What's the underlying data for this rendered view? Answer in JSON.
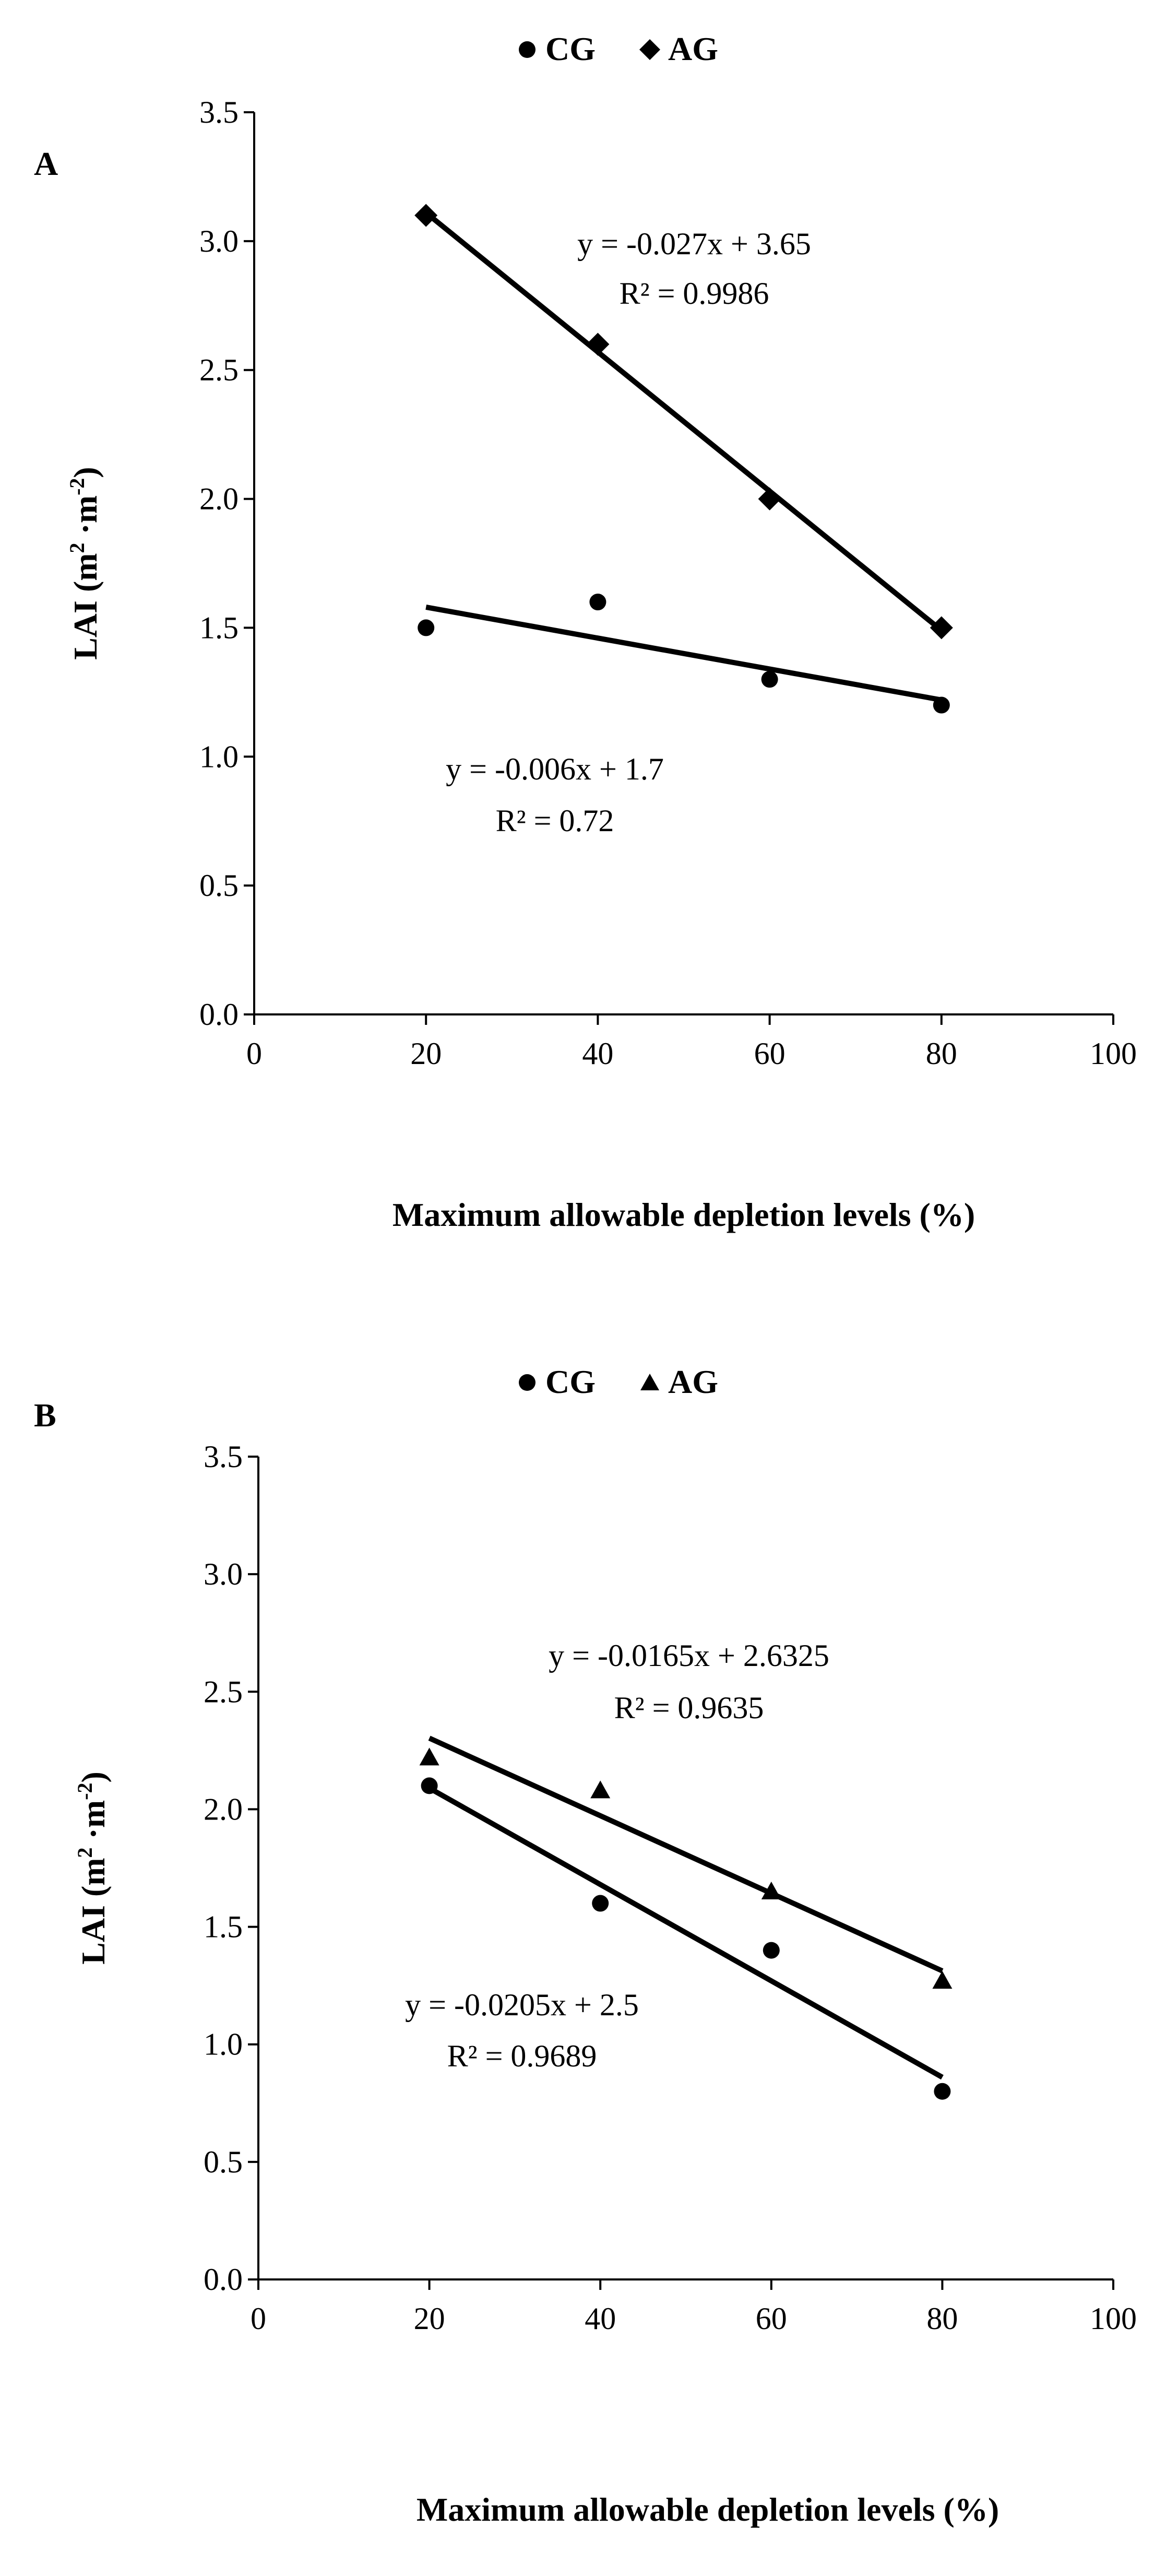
{
  "chart_data": [
    {
      "panel_label": "A",
      "type": "scatter",
      "title": "",
      "xlabel": "Maximum allowable depletion levels (%)",
      "ylabel_main": "LAI (m",
      "ylabel_sup1": "2",
      "ylabel_mid": " ·m",
      "ylabel_sup2": "-2",
      "ylabel_end": ")",
      "xlim": [
        0,
        100
      ],
      "ylim": [
        0,
        3.5
      ],
      "xticks": [
        0,
        20,
        40,
        60,
        80,
        100
      ],
      "yticks": [
        0.0,
        0.5,
        1.0,
        1.5,
        2.0,
        2.5,
        3.0,
        3.5
      ],
      "xtick_labels": [
        "0",
        "20",
        "40",
        "60",
        "80",
        "100"
      ],
      "ytick_labels": [
        "0.0",
        "0.5",
        "1.0",
        "1.5",
        "2.0",
        "2.5",
        "3.0",
        "3.5"
      ],
      "grid": false,
      "legend_position": "top-center",
      "series": [
        {
          "name": "CG",
          "marker": "circle",
          "x": [
            20,
            40,
            60,
            80
          ],
          "values": [
            1.5,
            1.6,
            1.3,
            1.2
          ],
          "trendline": {
            "slope": -0.006,
            "intercept": 1.7,
            "x_range": [
              20,
              80
            ]
          },
          "equation": "y = -0.006x + 1.7",
          "r2_label": "R² = 0.72"
        },
        {
          "name": "AG",
          "marker": "diamond",
          "x": [
            20,
            40,
            60,
            80
          ],
          "values": [
            3.1,
            2.6,
            2.0,
            1.5
          ],
          "trendline": {
            "slope": -0.027,
            "intercept": 3.65,
            "x_range": [
              20,
              80
            ]
          },
          "equation": "y = -0.027x + 3.65",
          "r2_label": "R² = 0.9986"
        }
      ]
    },
    {
      "panel_label": "B",
      "type": "scatter",
      "title": "",
      "xlabel": "Maximum allowable depletion levels (%)",
      "ylabel_main": "LAI (m",
      "ylabel_sup1": "2",
      "ylabel_mid": " ·m",
      "ylabel_sup2": "-2",
      "ylabel_end": ")",
      "xlim": [
        0,
        100
      ],
      "ylim": [
        0,
        3.5
      ],
      "xticks": [
        0,
        20,
        40,
        60,
        80,
        100
      ],
      "yticks": [
        0.0,
        0.5,
        1.0,
        1.5,
        2.0,
        2.5,
        3.0,
        3.5
      ],
      "xtick_labels": [
        "0",
        "20",
        "40",
        "60",
        "80",
        "100"
      ],
      "ytick_labels": [
        "0.0",
        "0.5",
        "1.0",
        "1.5",
        "2.0",
        "2.5",
        "3.0",
        "3.5"
      ],
      "grid": false,
      "legend_position": "top-center",
      "series": [
        {
          "name": "CG",
          "marker": "circle",
          "x": [
            20,
            40,
            60,
            80
          ],
          "values": [
            2.1,
            1.6,
            1.4,
            0.8
          ],
          "trendline": {
            "slope": -0.0205,
            "intercept": 2.5,
            "x_range": [
              20,
              80
            ]
          },
          "equation": "y = -0.0205x + 2.5",
          "r2_label": "R² = 0.9689"
        },
        {
          "name": "AG",
          "marker": "triangle",
          "x": [
            20,
            40,
            60,
            80
          ],
          "values": [
            2.22,
            2.08,
            1.65,
            1.27
          ],
          "trendline": {
            "slope": -0.0165,
            "intercept": 2.6325,
            "x_range": [
              20,
              80
            ]
          },
          "equation": "y = -0.0165x + 2.6325",
          "r2_label": "R² = 0.9635"
        }
      ]
    }
  ]
}
